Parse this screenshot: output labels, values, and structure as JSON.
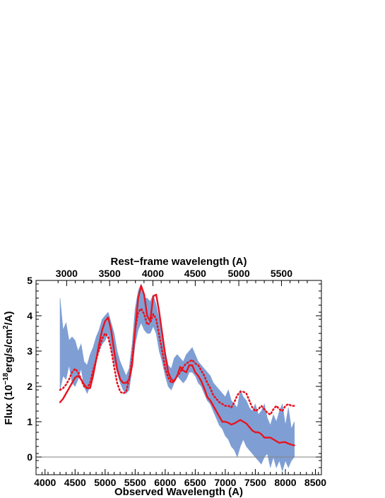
{
  "chart_data": {
    "type": "line",
    "title": "",
    "xlabel": "Observed Wavelength (A)",
    "x2label": "Rest−frame wavelength (A)",
    "ylabel_parts": {
      "pre": "Flux (10",
      "exp1": "−18",
      "mid": "erg/s/cm",
      "exp2": "2",
      "post": "/A)"
    },
    "xlim": [
      3850,
      8600
    ],
    "ylim": [
      -0.5,
      5.0
    ],
    "xticks": [
      4000,
      4500,
      5000,
      5500,
      6000,
      6500,
      7000,
      7500,
      8000,
      8500
    ],
    "yticks": [
      0,
      1,
      2,
      3,
      4,
      5
    ],
    "x2_rest": [
      3000,
      3500,
      4000,
      4500,
      5000,
      5500
    ],
    "x2_observed": [
      4360,
      5075,
      5795,
      6500,
      7225,
      7935
    ],
    "zero_line": 0,
    "colors": {
      "observed": "#7f9fd4",
      "model_solid": "#e8141e",
      "model_dotted": "#e8141e",
      "zero": "#808080"
    },
    "series": [
      {
        "style": "band",
        "x": [
          4250,
          4300,
          4350,
          4400,
          4450,
          4500,
          4550,
          4600,
          4650,
          4700,
          4750,
          4800,
          4850,
          4900,
          4950,
          5000,
          5050,
          5100,
          5150,
          5200,
          5250,
          5300,
          5350,
          5400,
          5450,
          5500,
          5550,
          5600,
          5650,
          5700,
          5750,
          5800,
          5850,
          5900,
          5950,
          6000,
          6050,
          6100,
          6150,
          6200,
          6250,
          6300,
          6350,
          6400,
          6450,
          6500,
          6550,
          6600,
          6650,
          6700,
          6750,
          6800,
          6850,
          6900,
          6950,
          7000,
          7050,
          7100,
          7150,
          7200,
          7250,
          7300,
          7350,
          7400,
          7450,
          7500,
          7550,
          7600,
          7650,
          7700,
          7750,
          7800,
          7850,
          7900,
          7950,
          8000,
          8050,
          8100,
          8150
        ],
        "low": [
          1.9,
          2.3,
          2.2,
          2.6,
          2.1,
          2.0,
          2.2,
          2.5,
          2.0,
          1.8,
          2.0,
          2.4,
          2.8,
          3.0,
          3.2,
          3.3,
          3.5,
          3.1,
          2.7,
          2.4,
          2.1,
          1.9,
          1.8,
          1.9,
          2.5,
          3.2,
          3.6,
          3.8,
          3.6,
          3.5,
          3.5,
          3.7,
          3.5,
          3.0,
          2.7,
          2.3,
          2.0,
          1.9,
          2.1,
          2.3,
          2.2,
          2.1,
          2.2,
          2.4,
          2.4,
          2.3,
          2.1,
          2.0,
          1.8,
          1.6,
          1.5,
          1.3,
          1.1,
          0.9,
          0.8,
          0.6,
          0.5,
          0.3,
          0.2,
          0.0,
          0.3,
          0.5,
          0.3,
          0.2,
          0.1,
          0.0,
          -0.1,
          -0.2,
          0.0,
          0.1,
          -0.3,
          0.0,
          -0.3,
          -0.1,
          -0.4,
          -0.1,
          -0.3,
          -0.1,
          0.0
        ],
        "high": [
          4.5,
          3.6,
          3.8,
          3.3,
          3.4,
          3.3,
          3.0,
          3.2,
          2.7,
          2.6,
          2.9,
          3.1,
          3.4,
          3.6,
          3.9,
          4.0,
          4.1,
          3.8,
          3.5,
          3.0,
          2.7,
          2.5,
          2.3,
          2.5,
          3.2,
          4.2,
          4.7,
          4.9,
          4.5,
          4.5,
          4.4,
          4.6,
          4.3,
          3.9,
          3.5,
          3.0,
          2.6,
          2.5,
          2.8,
          2.9,
          2.8,
          2.7,
          2.9,
          3.0,
          3.1,
          2.9,
          2.7,
          2.6,
          2.5,
          2.4,
          2.3,
          2.1,
          2.0,
          1.9,
          1.8,
          1.7,
          1.9,
          1.6,
          1.5,
          1.4,
          1.9,
          1.7,
          1.6,
          1.4,
          1.3,
          1.5,
          1.2,
          1.3,
          1.5,
          1.1,
          0.9,
          1.2,
          1.0,
          1.3,
          1.5,
          0.9,
          1.4,
          0.8,
          1.0
        ]
      },
      {
        "style": "solid",
        "x": [
          4250,
          4300,
          4350,
          4400,
          4450,
          4500,
          4550,
          4600,
          4650,
          4700,
          4750,
          4800,
          4850,
          4900,
          4950,
          5000,
          5050,
          5100,
          5150,
          5200,
          5250,
          5300,
          5350,
          5400,
          5450,
          5500,
          5550,
          5600,
          5650,
          5700,
          5750,
          5800,
          5850,
          5900,
          5950,
          6000,
          6050,
          6100,
          6150,
          6200,
          6250,
          6300,
          6350,
          6400,
          6450,
          6500,
          6550,
          6600,
          6650,
          6700,
          6750,
          6800,
          6850,
          6900,
          6950,
          7000,
          7050,
          7100,
          7150,
          7200,
          7250,
          7300,
          7350,
          7400,
          7450,
          7500,
          7550,
          7600,
          7650,
          7700,
          7750,
          7800,
          7850,
          7900,
          7950,
          8000,
          8050,
          8100,
          8150
        ],
        "y": [
          1.55,
          1.65,
          1.8,
          1.95,
          2.1,
          2.25,
          2.3,
          2.2,
          2.05,
          1.95,
          1.95,
          2.3,
          2.75,
          3.2,
          3.6,
          3.85,
          3.95,
          3.6,
          3.0,
          2.5,
          2.2,
          2.1,
          2.1,
          2.2,
          2.6,
          3.6,
          4.5,
          4.85,
          4.6,
          4.0,
          3.85,
          4.55,
          4.6,
          4.1,
          3.5,
          2.9,
          2.4,
          2.2,
          2.15,
          2.3,
          2.55,
          2.45,
          2.4,
          2.6,
          2.6,
          2.4,
          2.3,
          2.15,
          1.95,
          1.7,
          1.6,
          1.45,
          1.3,
          1.15,
          1.0,
          1.0,
          0.97,
          0.92,
          0.95,
          1.0,
          1.05,
          1.0,
          0.95,
          0.85,
          0.75,
          0.7,
          0.7,
          0.65,
          0.55,
          0.55,
          0.55,
          0.5,
          0.45,
          0.4,
          0.42,
          0.42,
          0.38,
          0.35,
          0.33
        ]
      },
      {
        "style": "dotted",
        "x": [
          4250,
          4300,
          4350,
          4400,
          4450,
          4500,
          4550,
          4600,
          4650,
          4700,
          4750,
          4800,
          4850,
          4900,
          4950,
          5000,
          5050,
          5100,
          5150,
          5200,
          5250,
          5300,
          5350,
          5400,
          5450,
          5500,
          5550,
          5600,
          5650,
          5700,
          5750,
          5800,
          5850,
          5900,
          5950,
          6000,
          6050,
          6100,
          6150,
          6200,
          6250,
          6300,
          6350,
          6400,
          6450,
          6500,
          6550,
          6600,
          6650,
          6700,
          6750,
          6800,
          6850,
          6900,
          6950,
          7000,
          7050,
          7100,
          7150,
          7200,
          7250,
          7300,
          7350,
          7400,
          7450,
          7500,
          7550,
          7600,
          7650,
          7700,
          7750,
          7800,
          7850,
          7900,
          7950,
          8000,
          8050,
          8100,
          8150
        ],
        "y": [
          1.9,
          1.95,
          2.05,
          2.2,
          2.4,
          2.5,
          2.4,
          2.2,
          2.0,
          1.95,
          2.1,
          2.45,
          2.75,
          3.05,
          3.35,
          3.5,
          3.4,
          3.05,
          2.55,
          2.1,
          1.85,
          1.8,
          1.85,
          2.2,
          2.8,
          3.6,
          4.1,
          4.2,
          4.05,
          3.75,
          3.8,
          4.05,
          3.9,
          3.45,
          3.0,
          2.5,
          2.25,
          2.1,
          2.15,
          2.3,
          2.4,
          2.55,
          2.65,
          2.7,
          2.75,
          2.65,
          2.6,
          2.45,
          2.3,
          2.1,
          1.95,
          1.75,
          1.65,
          1.55,
          1.5,
          1.45,
          1.45,
          1.4,
          1.55,
          1.75,
          1.85,
          1.85,
          1.8,
          1.6,
          1.4,
          1.3,
          1.35,
          1.45,
          1.35,
          1.25,
          1.2,
          1.35,
          1.45,
          1.35,
          1.3,
          1.45,
          1.5,
          1.45,
          1.45
        ]
      }
    ]
  }
}
